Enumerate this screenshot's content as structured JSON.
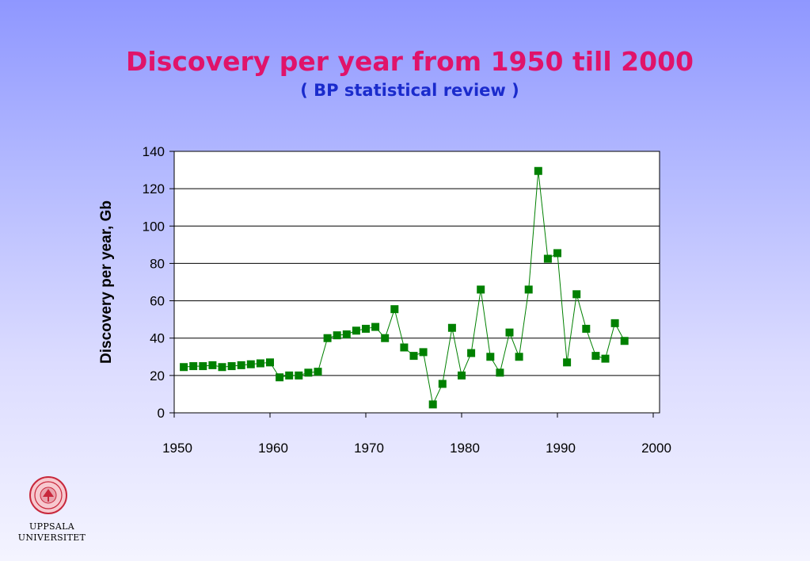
{
  "title": "Discovery per year from 1950 till 2000",
  "subtitle": "( BP statistical review )",
  "logo": {
    "line1": "UPPSALA",
    "line2": "UNIVERSITET",
    "icon": "university-seal-icon"
  },
  "colors": {
    "title": "#e0136a",
    "subtitle": "#1a2bcc",
    "series": "#008000",
    "grid": "#000000"
  },
  "chart_data": {
    "type": "line",
    "title": "",
    "xlabel": "",
    "ylabel": "Discovery per year, Gb",
    "xlim": [
      1950,
      2000
    ],
    "ylim": [
      0,
      140
    ],
    "xticks": [
      1950,
      1960,
      1970,
      1980,
      1990,
      2000
    ],
    "yticks": [
      0,
      20,
      40,
      60,
      80,
      100,
      120,
      140
    ],
    "grid": "horizontal",
    "legend": "none",
    "series": [
      {
        "name": "",
        "marker": "square",
        "x": [
          1951,
          1952,
          1953,
          1954,
          1955,
          1956,
          1957,
          1958,
          1959,
          1960,
          1961,
          1962,
          1963,
          1964,
          1965,
          1966,
          1967,
          1968,
          1969,
          1970,
          1971,
          1972,
          1973,
          1974,
          1975,
          1976,
          1977,
          1978,
          1979,
          1980,
          1981,
          1982,
          1983,
          1984,
          1985,
          1986,
          1987,
          1988,
          1989,
          1990,
          1991,
          1992,
          1993,
          1994,
          1995,
          1996,
          1997
        ],
        "values": [
          24.5,
          25,
          25,
          25.5,
          24.5,
          25,
          25.5,
          26,
          26.5,
          27,
          19,
          20,
          20,
          21.5,
          22,
          40,
          41.5,
          42,
          44,
          45,
          46,
          40,
          55.5,
          35,
          30.5,
          32.5,
          4.5,
          15.5,
          45.5,
          20,
          32,
          66,
          30,
          21.5,
          43,
          30,
          66,
          129.5,
          82.5,
          85.5,
          27,
          63.5,
          45,
          30.5,
          29,
          48,
          38.5
        ]
      }
    ]
  }
}
